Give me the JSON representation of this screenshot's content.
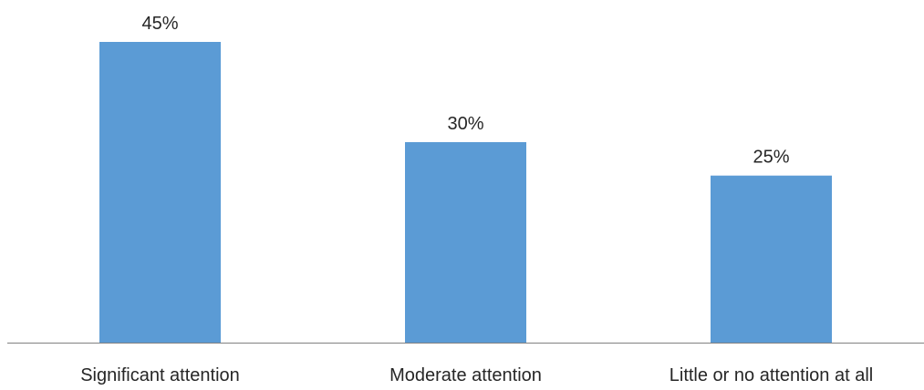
{
  "chart_data": {
    "type": "bar",
    "categories": [
      "Significant attention",
      "Moderate attention",
      "Little or no attention at all"
    ],
    "values": [
      45,
      30,
      25
    ],
    "value_labels": [
      "45%",
      "30%",
      "25%"
    ],
    "unit": "%",
    "title": "",
    "xlabel": "",
    "ylabel": "",
    "ylim": [
      0,
      45
    ],
    "grid": false,
    "legend": "none",
    "colors": {
      "bar": "#5B9BD5",
      "axis": "#808080",
      "text": "#262626"
    }
  }
}
